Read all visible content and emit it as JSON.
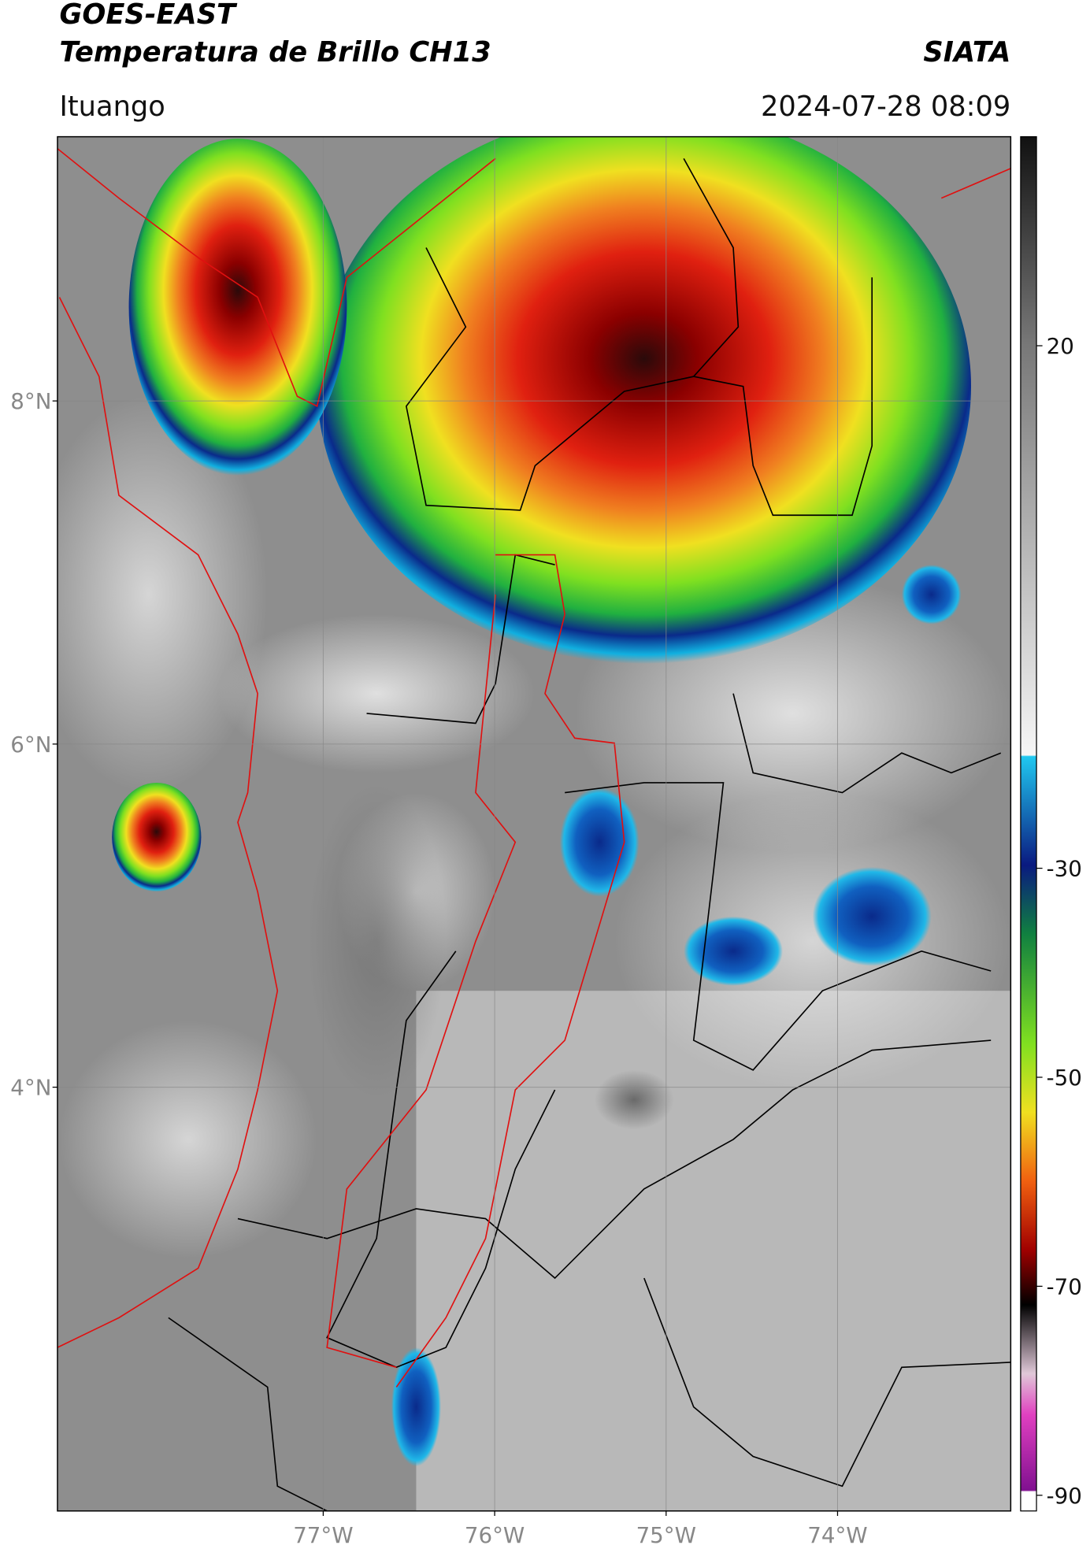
{
  "header": {
    "title_line1": "GOES-EAST",
    "title_line2": "Temperatura de Brillo CH13",
    "organization": "SIATA",
    "location": "Ituango",
    "timestamp": "2024-07-28 08:09"
  },
  "map": {
    "lat_range": [
      1.53,
      9.54
    ],
    "lon_range": [
      -78.55,
      -72.99
    ],
    "lat_ticks": [
      {
        "value": 8,
        "label": "8°N"
      },
      {
        "value": 6,
        "label": "6°N"
      },
      {
        "value": 4,
        "label": "4°N"
      }
    ],
    "lon_ticks": [
      {
        "value": -77,
        "label": "77°W"
      },
      {
        "value": -76,
        "label": "76°W"
      },
      {
        "value": -75,
        "label": "75°W"
      },
      {
        "value": -74,
        "label": "74°W"
      }
    ]
  },
  "colorbar": {
    "range": [
      -91.5,
      40
    ],
    "ticks": [
      20,
      -30,
      -50,
      -70,
      -90
    ]
  }
}
